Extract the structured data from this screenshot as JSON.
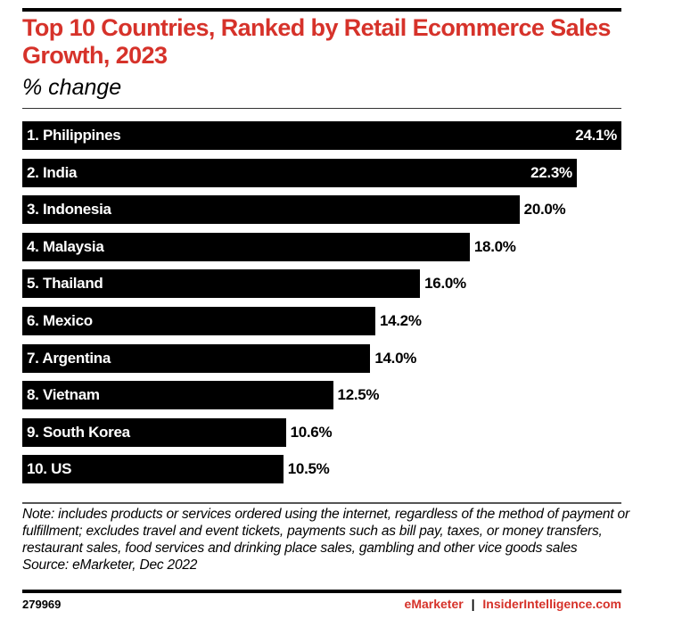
{
  "chart_data": {
    "type": "bar",
    "orientation": "horizontal",
    "title": "Top 10 Countries, Ranked by Retail Ecommerce Sales Growth, 2023",
    "subtitle": "% change",
    "categories": [
      "1. Philippines",
      "2. India",
      "3. Indonesia",
      "4. Malaysia",
      "5. Thailand",
      "6. Mexico",
      "7. Argentina",
      "8. Vietnam",
      "9. South Korea",
      "10. US"
    ],
    "values": [
      24.1,
      22.3,
      20.0,
      18.0,
      16.0,
      14.2,
      14.0,
      12.5,
      10.6,
      10.5
    ],
    "labels": [
      "24.1%",
      "22.3%",
      "20.0%",
      "18.0%",
      "16.0%",
      "14.2%",
      "14.0%",
      "12.5%",
      "10.6%",
      "10.5%"
    ],
    "xlim": [
      0,
      24.1
    ],
    "grid": false,
    "bar_color": "#000000"
  },
  "note": "Note: includes products or services ordered using the internet, regardless of the method of payment or fulfillment; excludes travel and event tickets, payments such as bill pay, taxes, or money transfers, restaurant sales, food services and drinking place sales, gambling and other vice goods sales",
  "source": "Source: eMarketer, Dec 2022",
  "chart_id": "279969",
  "brand": {
    "emarketer": "eMarketer",
    "divider": "|",
    "site": "InsiderIntelligence.com",
    "accent": "#d6322a"
  }
}
